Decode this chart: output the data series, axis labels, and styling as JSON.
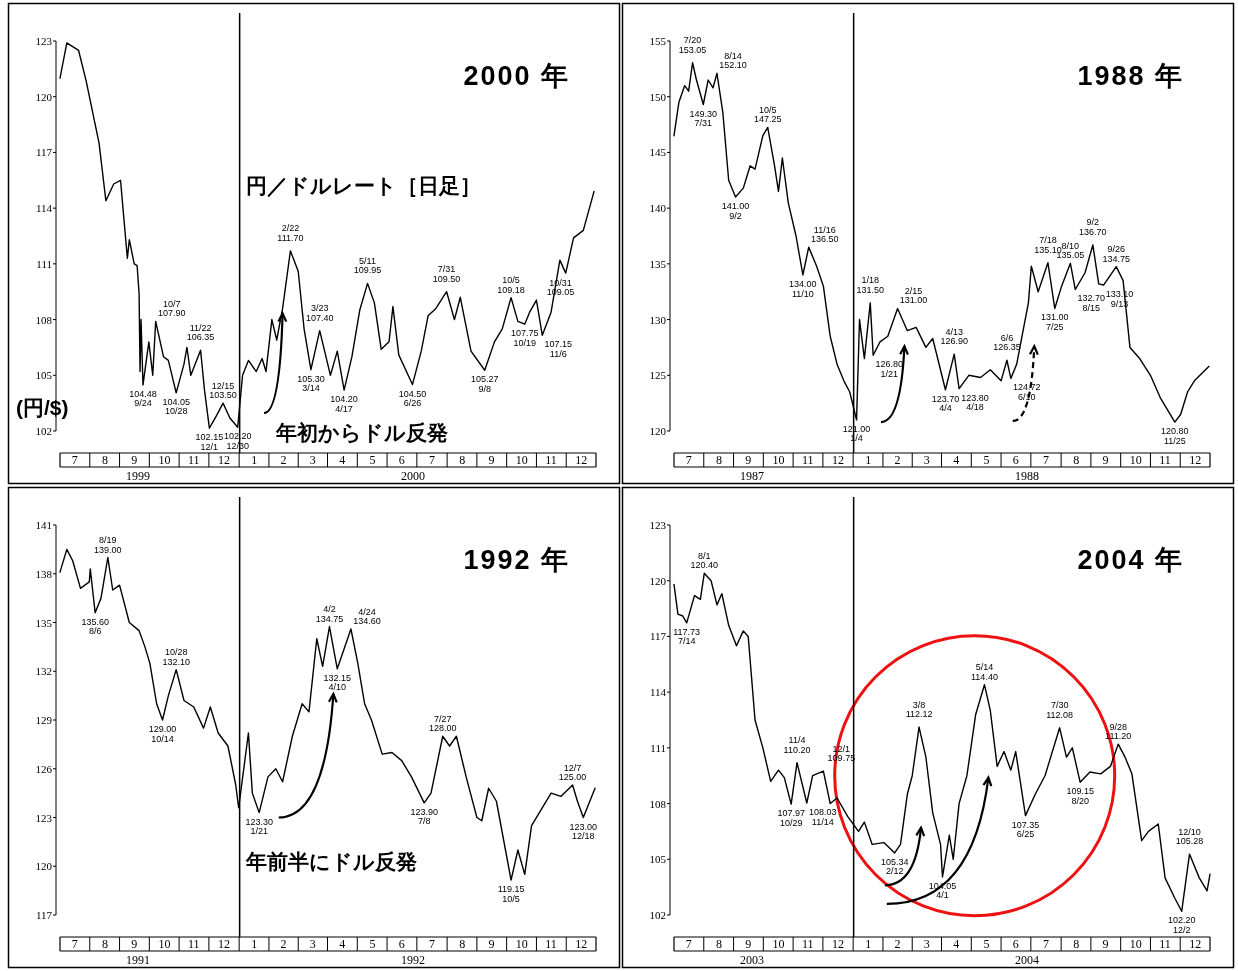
{
  "chart_data": [
    {
      "type": "line",
      "title": "2000 年",
      "ylabel": "(円/$)",
      "color": "#000000",
      "xlim": [
        "1999-07-01",
        "2000-12-31"
      ],
      "ylim": [
        102,
        123
      ],
      "yticks": [
        102,
        105,
        108,
        111,
        114,
        117,
        120,
        123
      ],
      "xticks": [
        {
          "value": "1999-07-16",
          "label": "7"
        },
        {
          "value": "1999-08-16",
          "label": "8"
        },
        {
          "value": "1999-09-15",
          "label": "9"
        },
        {
          "value": "1999-10-16",
          "label": "10"
        },
        {
          "value": "1999-11-15",
          "label": "11"
        },
        {
          "value": "1999-12-16",
          "label": "12"
        },
        {
          "value": "2000-01-16",
          "label": "1"
        },
        {
          "value": "2000-02-15",
          "label": "2"
        },
        {
          "value": "2000-03-16",
          "label": "3"
        },
        {
          "value": "2000-04-15",
          "label": "4"
        },
        {
          "value": "2000-05-16",
          "label": "5"
        },
        {
          "value": "2000-06-15",
          "label": "6"
        },
        {
          "value": "2000-07-16",
          "label": "7"
        },
        {
          "value": "2000-08-16",
          "label": "8"
        },
        {
          "value": "2000-09-15",
          "label": "9"
        },
        {
          "value": "2000-10-16",
          "label": "10"
        },
        {
          "value": "2000-11-15",
          "label": "11"
        },
        {
          "value": "2000-12-16",
          "label": "12"
        }
      ],
      "x": [
        "1999-07-01",
        "1999-07-08",
        "1999-07-20",
        "1999-07-28",
        "1999-08-10",
        "1999-08-17",
        "1999-08-25",
        "1999-09-01",
        "1999-09-08",
        "1999-09-10",
        "1999-09-15",
        "1999-09-18",
        "1999-09-20",
        "1999-09-21",
        "1999-09-22",
        "1999-09-24",
        "1999-09-30",
        "1999-10-04",
        "1999-10-07",
        "1999-10-15",
        "1999-10-20",
        "1999-10-28",
        "1999-11-05",
        "1999-11-08",
        "1999-11-12",
        "1999-11-22",
        "1999-11-26",
        "1999-12-01",
        "1999-12-08",
        "1999-12-15",
        "1999-12-22",
        "1999-12-30",
        "2000-01-04",
        "2000-01-10",
        "2000-01-18",
        "2000-01-24",
        "2000-01-28",
        "2000-02-03",
        "2000-02-08",
        "2000-02-14",
        "2000-02-22",
        "2000-03-01",
        "2000-03-07",
        "2000-03-14",
        "2000-03-23",
        "2000-04-03",
        "2000-04-10",
        "2000-04-17",
        "2000-04-25",
        "2000-05-03",
        "2000-05-11",
        "2000-05-18",
        "2000-05-25",
        "2000-06-02",
        "2000-06-06",
        "2000-06-12",
        "2000-06-26",
        "2000-07-05",
        "2000-07-12",
        "2000-07-20",
        "2000-07-31",
        "2000-08-08",
        "2000-08-14",
        "2000-08-25",
        "2000-09-08",
        "2000-09-18",
        "2000-09-26",
        "2000-10-05",
        "2000-10-12",
        "2000-10-19",
        "2000-10-24",
        "2000-10-31",
        "2000-11-06",
        "2000-11-15",
        "2000-11-24",
        "2000-11-30",
        "2000-12-08",
        "2000-12-18",
        "2000-12-29"
      ],
      "values": [
        121.0,
        122.9,
        122.5,
        120.8,
        117.5,
        114.4,
        115.3,
        115.5,
        111.3,
        112.3,
        111.0,
        110.9,
        109.4,
        105.2,
        108.0,
        104.48,
        106.8,
        105.0,
        107.9,
        106.0,
        105.8,
        104.05,
        105.6,
        106.5,
        105.0,
        106.35,
        104.2,
        102.15,
        102.8,
        103.5,
        102.7,
        102.2,
        105.0,
        105.8,
        105.2,
        105.9,
        105.2,
        108.0,
        106.9,
        108.6,
        111.7,
        110.6,
        107.5,
        105.3,
        107.4,
        105.0,
        106.3,
        104.2,
        106.0,
        108.5,
        109.95,
        108.9,
        106.4,
        106.8,
        108.7,
        106.1,
        104.5,
        106.3,
        108.2,
        108.6,
        109.5,
        108.0,
        109.2,
        106.3,
        105.27,
        106.8,
        107.5,
        109.18,
        107.9,
        107.75,
        108.4,
        109.05,
        107.15,
        108.4,
        111.2,
        110.5,
        112.4,
        112.8,
        114.9
      ],
      "ref_lines": [
        {
          "axis": "x",
          "value": "2000-01-01"
        }
      ],
      "annotations": [
        "円／ドルレート［日足］",
        {
          "text": "年初からドル反発",
          "x": "2000-02-14",
          "y": 108.6
        },
        "1999",
        "2000",
        {
          "text": "10/7\n107.90",
          "x": "1999-10-07",
          "y": 107.9
        },
        {
          "text": "104.48\n9/24",
          "x": "1999-09-24",
          "y": 104.48
        },
        {
          "text": "104.05\n10/28",
          "x": "1999-10-28",
          "y": 104.05
        },
        {
          "text": "11/22\n106.35",
          "x": "1999-11-22",
          "y": 106.35
        },
        {
          "text": "12/15\n103.50",
          "x": "1999-12-15",
          "y": 103.5
        },
        {
          "text": "102.15\n12/1",
          "x": "1999-12-01",
          "y": 102.15
        },
        {
          "text": "102.20\n12/30",
          "x": "1999-12-30",
          "y": 102.2
        },
        {
          "text": "2/22\n111.70",
          "x": "2000-02-22",
          "y": 111.7
        },
        {
          "text": "3/23\n107.40",
          "x": "2000-03-23",
          "y": 107.4
        },
        {
          "text": "105.30\n3/14",
          "x": "2000-03-14",
          "y": 105.3
        },
        {
          "text": "104.20\n4/17",
          "x": "2000-04-17",
          "y": 104.2
        },
        {
          "text": "5/11\n109.95",
          "x": "2000-05-11",
          "y": 109.95
        },
        {
          "text": "104.50\n6/26",
          "x": "2000-06-26",
          "y": 104.5
        },
        {
          "text": "7/31\n109.50",
          "x": "2000-07-31",
          "y": 109.5
        },
        {
          "text": "105.27\n9/8",
          "x": "2000-09-08",
          "y": 105.27
        },
        {
          "text": "10/5\n109.18",
          "x": "2000-10-05",
          "y": 109.18
        },
        {
          "text": "10/31\n109.05",
          "x": "2000-10-31",
          "y": 109.05
        },
        {
          "text": "107.75\n10/19",
          "x": "2000-10-19",
          "y": 107.75
        },
        {
          "text": "107.15\n11/6",
          "x": "2000-11-06",
          "y": 107.15
        }
      ]
    },
    {
      "type": "line",
      "title": "1988 年",
      "color": "#000000",
      "xlim": [
        "1987-07-01",
        "1988-12-31"
      ],
      "ylim": [
        120,
        155
      ],
      "yticks": [
        120,
        125,
        130,
        135,
        140,
        145,
        150,
        155
      ],
      "xticks": [
        {
          "value": "1987-07-16",
          "label": "7"
        },
        {
          "value": "1987-08-16",
          "label": "8"
        },
        {
          "value": "1987-09-15",
          "label": "9"
        },
        {
          "value": "1987-10-16",
          "label": "10"
        },
        {
          "value": "1987-11-15",
          "label": "11"
        },
        {
          "value": "1987-12-16",
          "label": "12"
        },
        {
          "value": "1988-01-16",
          "label": "1"
        },
        {
          "value": "1988-02-15",
          "label": "2"
        },
        {
          "value": "1988-03-16",
          "label": "3"
        },
        {
          "value": "1988-04-15",
          "label": "4"
        },
        {
          "value": "1988-05-16",
          "label": "5"
        },
        {
          "value": "1988-06-15",
          "label": "6"
        },
        {
          "value": "1988-07-16",
          "label": "7"
        },
        {
          "value": "1988-08-16",
          "label": "8"
        },
        {
          "value": "1988-09-15",
          "label": "9"
        },
        {
          "value": "1988-10-16",
          "label": "10"
        },
        {
          "value": "1988-11-15",
          "label": "11"
        },
        {
          "value": "1988-12-16",
          "label": "12"
        }
      ],
      "x": [
        "1987-07-01",
        "1987-07-06",
        "1987-07-12",
        "1987-07-16",
        "1987-07-20",
        "1987-07-24",
        "1987-07-31",
        "1987-08-05",
        "1987-08-10",
        "1987-08-14",
        "1987-08-20",
        "1987-08-26",
        "1987-09-02",
        "1987-09-10",
        "1987-09-17",
        "1987-09-22",
        "1987-09-30",
        "1987-10-05",
        "1987-10-12",
        "1987-10-16",
        "1987-10-20",
        "1987-10-26",
        "1987-11-03",
        "1987-11-10",
        "1987-11-16",
        "1987-11-24",
        "1987-12-01",
        "1987-12-08",
        "1987-12-15",
        "1987-12-22",
        "1987-12-28",
        "1988-01-04",
        "1988-01-07",
        "1988-01-12",
        "1988-01-18",
        "1988-01-21",
        "1988-01-28",
        "1988-02-05",
        "1988-02-15",
        "1988-02-25",
        "1988-03-05",
        "1988-03-15",
        "1988-03-22",
        "1988-04-04",
        "1988-04-13",
        "1988-04-18",
        "1988-04-28",
        "1988-05-10",
        "1988-05-20",
        "1988-05-31",
        "1988-06-06",
        "1988-06-10",
        "1988-06-16",
        "1988-06-28",
        "1988-07-01",
        "1988-07-08",
        "1988-07-18",
        "1988-07-25",
        "1988-08-01",
        "1988-08-10",
        "1988-08-15",
        "1988-08-25",
        "1988-09-02",
        "1988-09-08",
        "1988-09-13",
        "1988-09-26",
        "1988-10-03",
        "1988-10-10",
        "1988-10-20",
        "1988-10-31",
        "1988-11-10",
        "1988-11-25",
        "1988-12-01",
        "1988-12-08",
        "1988-12-15",
        "1988-12-30"
      ],
      "values": [
        146.5,
        149.5,
        151.0,
        150.5,
        153.05,
        151.5,
        149.3,
        151.5,
        150.8,
        152.1,
        148.6,
        142.5,
        141.0,
        141.8,
        143.8,
        143.5,
        146.5,
        147.25,
        143.8,
        141.5,
        144.5,
        140.5,
        137.5,
        134.0,
        136.5,
        134.8,
        133.0,
        128.5,
        126.0,
        124.5,
        123.5,
        121.0,
        130.0,
        126.5,
        131.5,
        126.8,
        128.0,
        128.5,
        131.0,
        129.0,
        129.3,
        127.5,
        128.3,
        123.7,
        126.9,
        123.8,
        125.0,
        124.8,
        125.5,
        124.5,
        126.35,
        124.72,
        126.0,
        131.5,
        134.8,
        132.5,
        135.1,
        131.0,
        133.0,
        135.05,
        132.7,
        134.2,
        136.7,
        133.2,
        133.1,
        134.75,
        133.5,
        127.5,
        126.5,
        125.0,
        123.0,
        120.8,
        121.5,
        123.5,
        124.5,
        125.8
      ],
      "ref_lines": [
        {
          "axis": "x",
          "value": "1988-01-01"
        }
      ],
      "annotations": [
        "1987",
        "1988",
        {
          "text": "7/20\n153.05",
          "x": "1987-07-20",
          "y": 153.05
        },
        {
          "text": "8/14\n152.10",
          "x": "1987-08-14",
          "y": 152.1
        },
        {
          "text": "149.30\n7/31",
          "x": "1987-07-31",
          "y": 149.3
        },
        {
          "text": "10/5\n147.25",
          "x": "1987-10-05",
          "y": 147.25
        },
        {
          "text": "141.00\n9/2",
          "x": "1987-09-02",
          "y": 141.0
        },
        {
          "text": "11/16\n136.50",
          "x": "1987-11-16",
          "y": 136.5
        },
        {
          "text": "134.00\n11/10",
          "x": "1987-11-10",
          "y": 134.0
        },
        {
          "text": "121.00\n1/4",
          "x": "1988-01-04",
          "y": 121.0
        },
        {
          "text": "1/18\n131.50",
          "x": "1988-01-18",
          "y": 131.5
        },
        {
          "text": "2/15\n131.00",
          "x": "1988-02-15",
          "y": 131.0
        },
        {
          "text": "126.80\n1/21",
          "x": "1988-01-21",
          "y": 126.8
        },
        {
          "text": "4/13\n126.90",
          "x": "1988-04-13",
          "y": 126.9
        },
        {
          "text": "123.80\n4/18",
          "x": "1988-04-18",
          "y": 123.8
        },
        {
          "text": "123.70\n4/4",
          "x": "1988-04-04",
          "y": 123.7
        },
        {
          "text": "6/6\n126.35",
          "x": "1988-06-06",
          "y": 126.35
        },
        {
          "text": "124.72\n6/10",
          "x": "1988-06-10",
          "y": 124.72
        },
        {
          "text": "7/18\n135.10",
          "x": "1988-07-18",
          "y": 135.1
        },
        {
          "text": "131.00\n7/25",
          "x": "1988-07-25",
          "y": 131.0
        },
        {
          "text": "8/10\n135.05",
          "x": "1988-08-10",
          "y": 135.05
        },
        {
          "text": "132.70\n8/15",
          "x": "1988-08-15",
          "y": 132.7
        },
        {
          "text": "9/2\n136.70",
          "x": "1988-09-02",
          "y": 136.7
        },
        {
          "text": "9/26\n134.75",
          "x": "1988-09-26",
          "y": 134.75
        },
        {
          "text": "133.10\n9/13",
          "x": "1988-09-13",
          "y": 133.1
        },
        {
          "text": "120.80\n11/25",
          "x": "1988-11-25",
          "y": 120.8
        }
      ]
    },
    {
      "type": "line",
      "title": "1992 年",
      "color": "#000000",
      "xlim": [
        "1991-07-01",
        "1992-12-31"
      ],
      "ylim": [
        117,
        141
      ],
      "yticks": [
        117,
        120,
        123,
        126,
        129,
        132,
        135,
        138,
        141
      ],
      "xticks": [
        {
          "value": "1991-07-16",
          "label": "7"
        },
        {
          "value": "1991-08-16",
          "label": "8"
        },
        {
          "value": "1991-09-15",
          "label": "9"
        },
        {
          "value": "1991-10-16",
          "label": "10"
        },
        {
          "value": "1991-11-15",
          "label": "11"
        },
        {
          "value": "1991-12-16",
          "label": "12"
        },
        {
          "value": "1992-01-16",
          "label": "1"
        },
        {
          "value": "1992-02-15",
          "label": "2"
        },
        {
          "value": "1992-03-16",
          "label": "3"
        },
        {
          "value": "1992-04-15",
          "label": "4"
        },
        {
          "value": "1992-05-16",
          "label": "5"
        },
        {
          "value": "1992-06-15",
          "label": "6"
        },
        {
          "value": "1992-07-16",
          "label": "7"
        },
        {
          "value": "1992-08-16",
          "label": "8"
        },
        {
          "value": "1992-09-15",
          "label": "9"
        },
        {
          "value": "1992-10-16",
          "label": "10"
        },
        {
          "value": "1992-11-15",
          "label": "11"
        },
        {
          "value": "1992-12-16",
          "label": "12"
        }
      ],
      "x": [
        "1991-07-01",
        "1991-07-08",
        "1991-07-14",
        "1991-07-22",
        "1991-07-31",
        "1991-08-01",
        "1991-08-06",
        "1991-08-12",
        "1991-08-19",
        "1991-08-24",
        "1991-08-31",
        "1991-09-10",
        "1991-09-20",
        "1991-09-26",
        "1991-10-01",
        "1991-10-08",
        "1991-10-14",
        "1991-10-20",
        "1991-10-28",
        "1991-11-05",
        "1991-11-15",
        "1991-11-25",
        "1991-12-02",
        "1991-12-10",
        "1991-12-20",
        "1991-12-28",
        "1991-12-31",
        "1992-01-10",
        "1992-01-14",
        "1992-01-21",
        "1992-01-30",
        "1992-02-07",
        "1992-02-14",
        "1992-02-24",
        "1992-03-05",
        "1992-03-12",
        "1992-03-20",
        "1992-03-26",
        "1992-04-02",
        "1992-04-10",
        "1992-04-24",
        "1992-05-01",
        "1992-05-08",
        "1992-05-15",
        "1992-05-26",
        "1992-06-05",
        "1992-06-15",
        "1992-06-25",
        "1992-07-08",
        "1992-07-15",
        "1992-07-27",
        "1992-08-03",
        "1992-08-10",
        "1992-08-20",
        "1992-08-31",
        "1992-09-05",
        "1992-09-12",
        "1992-09-20",
        "1992-10-05",
        "1992-10-12",
        "1992-10-19",
        "1992-10-26",
        "1992-11-05",
        "1992-11-15",
        "1992-11-25",
        "1992-12-07",
        "1992-12-12",
        "1992-12-18",
        "1992-12-30"
      ],
      "values": [
        138.1,
        139.5,
        138.8,
        137.1,
        137.5,
        138.3,
        135.6,
        136.5,
        139.0,
        137.0,
        137.3,
        135.0,
        134.5,
        133.5,
        132.5,
        130.0,
        129.0,
        130.5,
        132.1,
        130.2,
        129.8,
        128.5,
        129.8,
        128.2,
        127.4,
        125.0,
        123.6,
        128.2,
        124.5,
        123.3,
        125.5,
        126.0,
        125.2,
        128.0,
        130.0,
        129.5,
        134.0,
        132.3,
        134.75,
        132.15,
        134.6,
        132.5,
        130.0,
        129.0,
        126.9,
        127.0,
        126.5,
        125.5,
        123.9,
        124.5,
        128.0,
        127.4,
        128.0,
        125.5,
        123.0,
        122.8,
        124.8,
        124.0,
        119.15,
        121.0,
        119.5,
        122.5,
        123.5,
        124.5,
        124.3,
        125.0,
        124.0,
        123.0,
        124.8
      ],
      "ref_lines": [
        {
          "axis": "x",
          "value": "1992-01-01"
        }
      ],
      "annotations": [
        "年前半にドル反発",
        "1991",
        "1992",
        {
          "text": "8/19\n139.00",
          "x": "1991-08-19",
          "y": 139.0
        },
        {
          "text": "135.60\n8/6",
          "x": "1991-08-06",
          "y": 135.6
        },
        {
          "text": "10/28\n132.10",
          "x": "1991-10-28",
          "y": 132.1
        },
        {
          "text": "129.00\n10/14",
          "x": "1991-10-14",
          "y": 129.0
        },
        {
          "text": "123.30\n1/21",
          "x": "1992-01-21",
          "y": 123.3
        },
        {
          "text": "4/2\n134.75",
          "x": "1992-04-02",
          "y": 134.75
        },
        {
          "text": "4/24\n134.60",
          "x": "1992-04-24",
          "y": 134.6
        },
        {
          "text": "132.15\n4/10",
          "x": "1992-04-10",
          "y": 132.15
        },
        {
          "text": "7/27\n128.00",
          "x": "1992-07-27",
          "y": 128.0
        },
        {
          "text": "123.90\n7/8",
          "x": "1992-07-08",
          "y": 123.9
        },
        {
          "text": "119.15\n10/5",
          "x": "1992-10-05",
          "y": 119.15
        },
        {
          "text": "12/7\n125.00",
          "x": "1992-12-07",
          "y": 125.0
        },
        {
          "text": "123.00\n12/18",
          "x": "1992-12-18",
          "y": 123.0
        }
      ]
    },
    {
      "type": "line",
      "title": "2004 年",
      "color": "#000000",
      "xlim": [
        "2003-07-01",
        "2004-12-31"
      ],
      "ylim": [
        102,
        123
      ],
      "yticks": [
        102,
        105,
        108,
        111,
        114,
        117,
        120,
        123
      ],
      "xticks": [
        {
          "value": "2003-07-16",
          "label": "7"
        },
        {
          "value": "2003-08-16",
          "label": "8"
        },
        {
          "value": "2003-09-15",
          "label": "9"
        },
        {
          "value": "2003-10-16",
          "label": "10"
        },
        {
          "value": "2003-11-15",
          "label": "11"
        },
        {
          "value": "2003-12-16",
          "label": "12"
        },
        {
          "value": "2004-01-16",
          "label": "1"
        },
        {
          "value": "2004-02-15",
          "label": "2"
        },
        {
          "value": "2004-03-16",
          "label": "3"
        },
        {
          "value": "2004-04-15",
          "label": "4"
        },
        {
          "value": "2004-05-16",
          "label": "5"
        },
        {
          "value": "2004-06-15",
          "label": "6"
        },
        {
          "value": "2004-07-16",
          "label": "7"
        },
        {
          "value": "2004-08-16",
          "label": "8"
        },
        {
          "value": "2004-09-15",
          "label": "9"
        },
        {
          "value": "2004-10-16",
          "label": "10"
        },
        {
          "value": "2004-11-15",
          "label": "11"
        },
        {
          "value": "2004-12-16",
          "label": "12"
        }
      ],
      "x": [
        "2003-07-01",
        "2003-07-05",
        "2003-07-10",
        "2003-07-14",
        "2003-07-22",
        "2003-07-28",
        "2003-08-01",
        "2003-08-08",
        "2003-08-14",
        "2003-08-19",
        "2003-08-26",
        "2003-09-03",
        "2003-09-10",
        "2003-09-15",
        "2003-09-22",
        "2003-09-30",
        "2003-10-08",
        "2003-10-16",
        "2003-10-22",
        "2003-10-29",
        "2003-11-04",
        "2003-11-14",
        "2003-11-20",
        "2003-12-01",
        "2003-12-08",
        "2003-12-15",
        "2003-12-26",
        "2004-01-06",
        "2004-01-12",
        "2004-01-20",
        "2004-02-01",
        "2004-02-12",
        "2004-02-18",
        "2004-02-25",
        "2004-03-01",
        "2004-03-08",
        "2004-03-15",
        "2004-03-22",
        "2004-03-30",
        "2004-04-01",
        "2004-04-08",
        "2004-04-12",
        "2004-04-18",
        "2004-04-26",
        "2004-05-05",
        "2004-05-14",
        "2004-05-20",
        "2004-05-27",
        "2004-06-03",
        "2004-06-10",
        "2004-06-15",
        "2004-06-25",
        "2004-07-05",
        "2004-07-15",
        "2004-07-30",
        "2004-08-06",
        "2004-08-12",
        "2004-08-20",
        "2004-08-30",
        "2004-09-10",
        "2004-09-20",
        "2004-09-28",
        "2004-10-05",
        "2004-10-12",
        "2004-10-22",
        "2004-10-29",
        "2004-11-08",
        "2004-11-15",
        "2004-11-25",
        "2004-12-02",
        "2004-12-10",
        "2004-12-20",
        "2004-12-28",
        "2004-12-31"
      ],
      "values": [
        119.8,
        118.2,
        118.1,
        117.73,
        119.2,
        119.0,
        120.4,
        120.0,
        118.7,
        119.3,
        117.6,
        116.5,
        117.3,
        117.0,
        112.5,
        111.0,
        109.2,
        109.8,
        109.4,
        107.97,
        110.2,
        108.03,
        109.5,
        109.75,
        108.0,
        108.3,
        107.3,
        106.5,
        107.0,
        105.8,
        105.9,
        105.34,
        105.8,
        108.5,
        109.5,
        112.12,
        110.5,
        107.5,
        105.8,
        104.05,
        106.3,
        105.0,
        108.0,
        109.5,
        112.8,
        114.4,
        113.0,
        110.0,
        110.8,
        109.8,
        110.8,
        107.35,
        108.5,
        109.5,
        112.08,
        110.5,
        111.0,
        109.15,
        109.7,
        109.6,
        110.0,
        111.2,
        110.5,
        109.6,
        106.0,
        106.5,
        106.9,
        104.0,
        102.9,
        102.2,
        105.28,
        104.0,
        103.3,
        104.2
      ],
      "ref_lines": [
        {
          "axis": "x",
          "value": "2004-01-01"
        }
      ],
      "annotations": [
        "2003",
        "2004",
        {
          "text": "8/1\n120.40",
          "x": "2003-08-01",
          "y": 120.4
        },
        {
          "text": "117.73\n7/14",
          "x": "2003-07-14",
          "y": 117.73
        },
        {
          "text": "11/4\n110.20",
          "x": "2003-11-04",
          "y": 110.2
        },
        {
          "text": "12/1\n109.75",
          "x": "2003-12-01",
          "y": 109.75
        },
        {
          "text": "108.03\n11/14",
          "x": "2003-11-14",
          "y": 108.03
        },
        {
          "text": "107.97\n10/29",
          "x": "2003-10-29",
          "y": 107.97
        },
        {
          "text": "3/8\n112.12",
          "x": "2004-03-08",
          "y": 112.12
        },
        {
          "text": "105.34\n2/12",
          "x": "2004-02-12",
          "y": 105.34
        },
        {
          "text": "104.05\n4/1",
          "x": "2004-04-01",
          "y": 104.05
        },
        {
          "text": "5/14\n114.40",
          "x": "2004-05-14",
          "y": 114.4
        },
        {
          "text": "107.35\n6/25",
          "x": "2004-06-25",
          "y": 107.35
        },
        {
          "text": "7/30\n112.08",
          "x": "2004-07-30",
          "y": 112.08
        },
        {
          "text": "109.15\n8/20",
          "x": "2004-08-20",
          "y": 109.15
        },
        {
          "text": "9/28\n111.20",
          "x": "2004-09-28",
          "y": 111.2
        },
        {
          "text": "12/10\n105.28",
          "x": "2004-12-10",
          "y": 105.28
        },
        {
          "text": "102.20\n12/2",
          "x": "2004-12-02",
          "y": 102.2
        }
      ]
    }
  ]
}
